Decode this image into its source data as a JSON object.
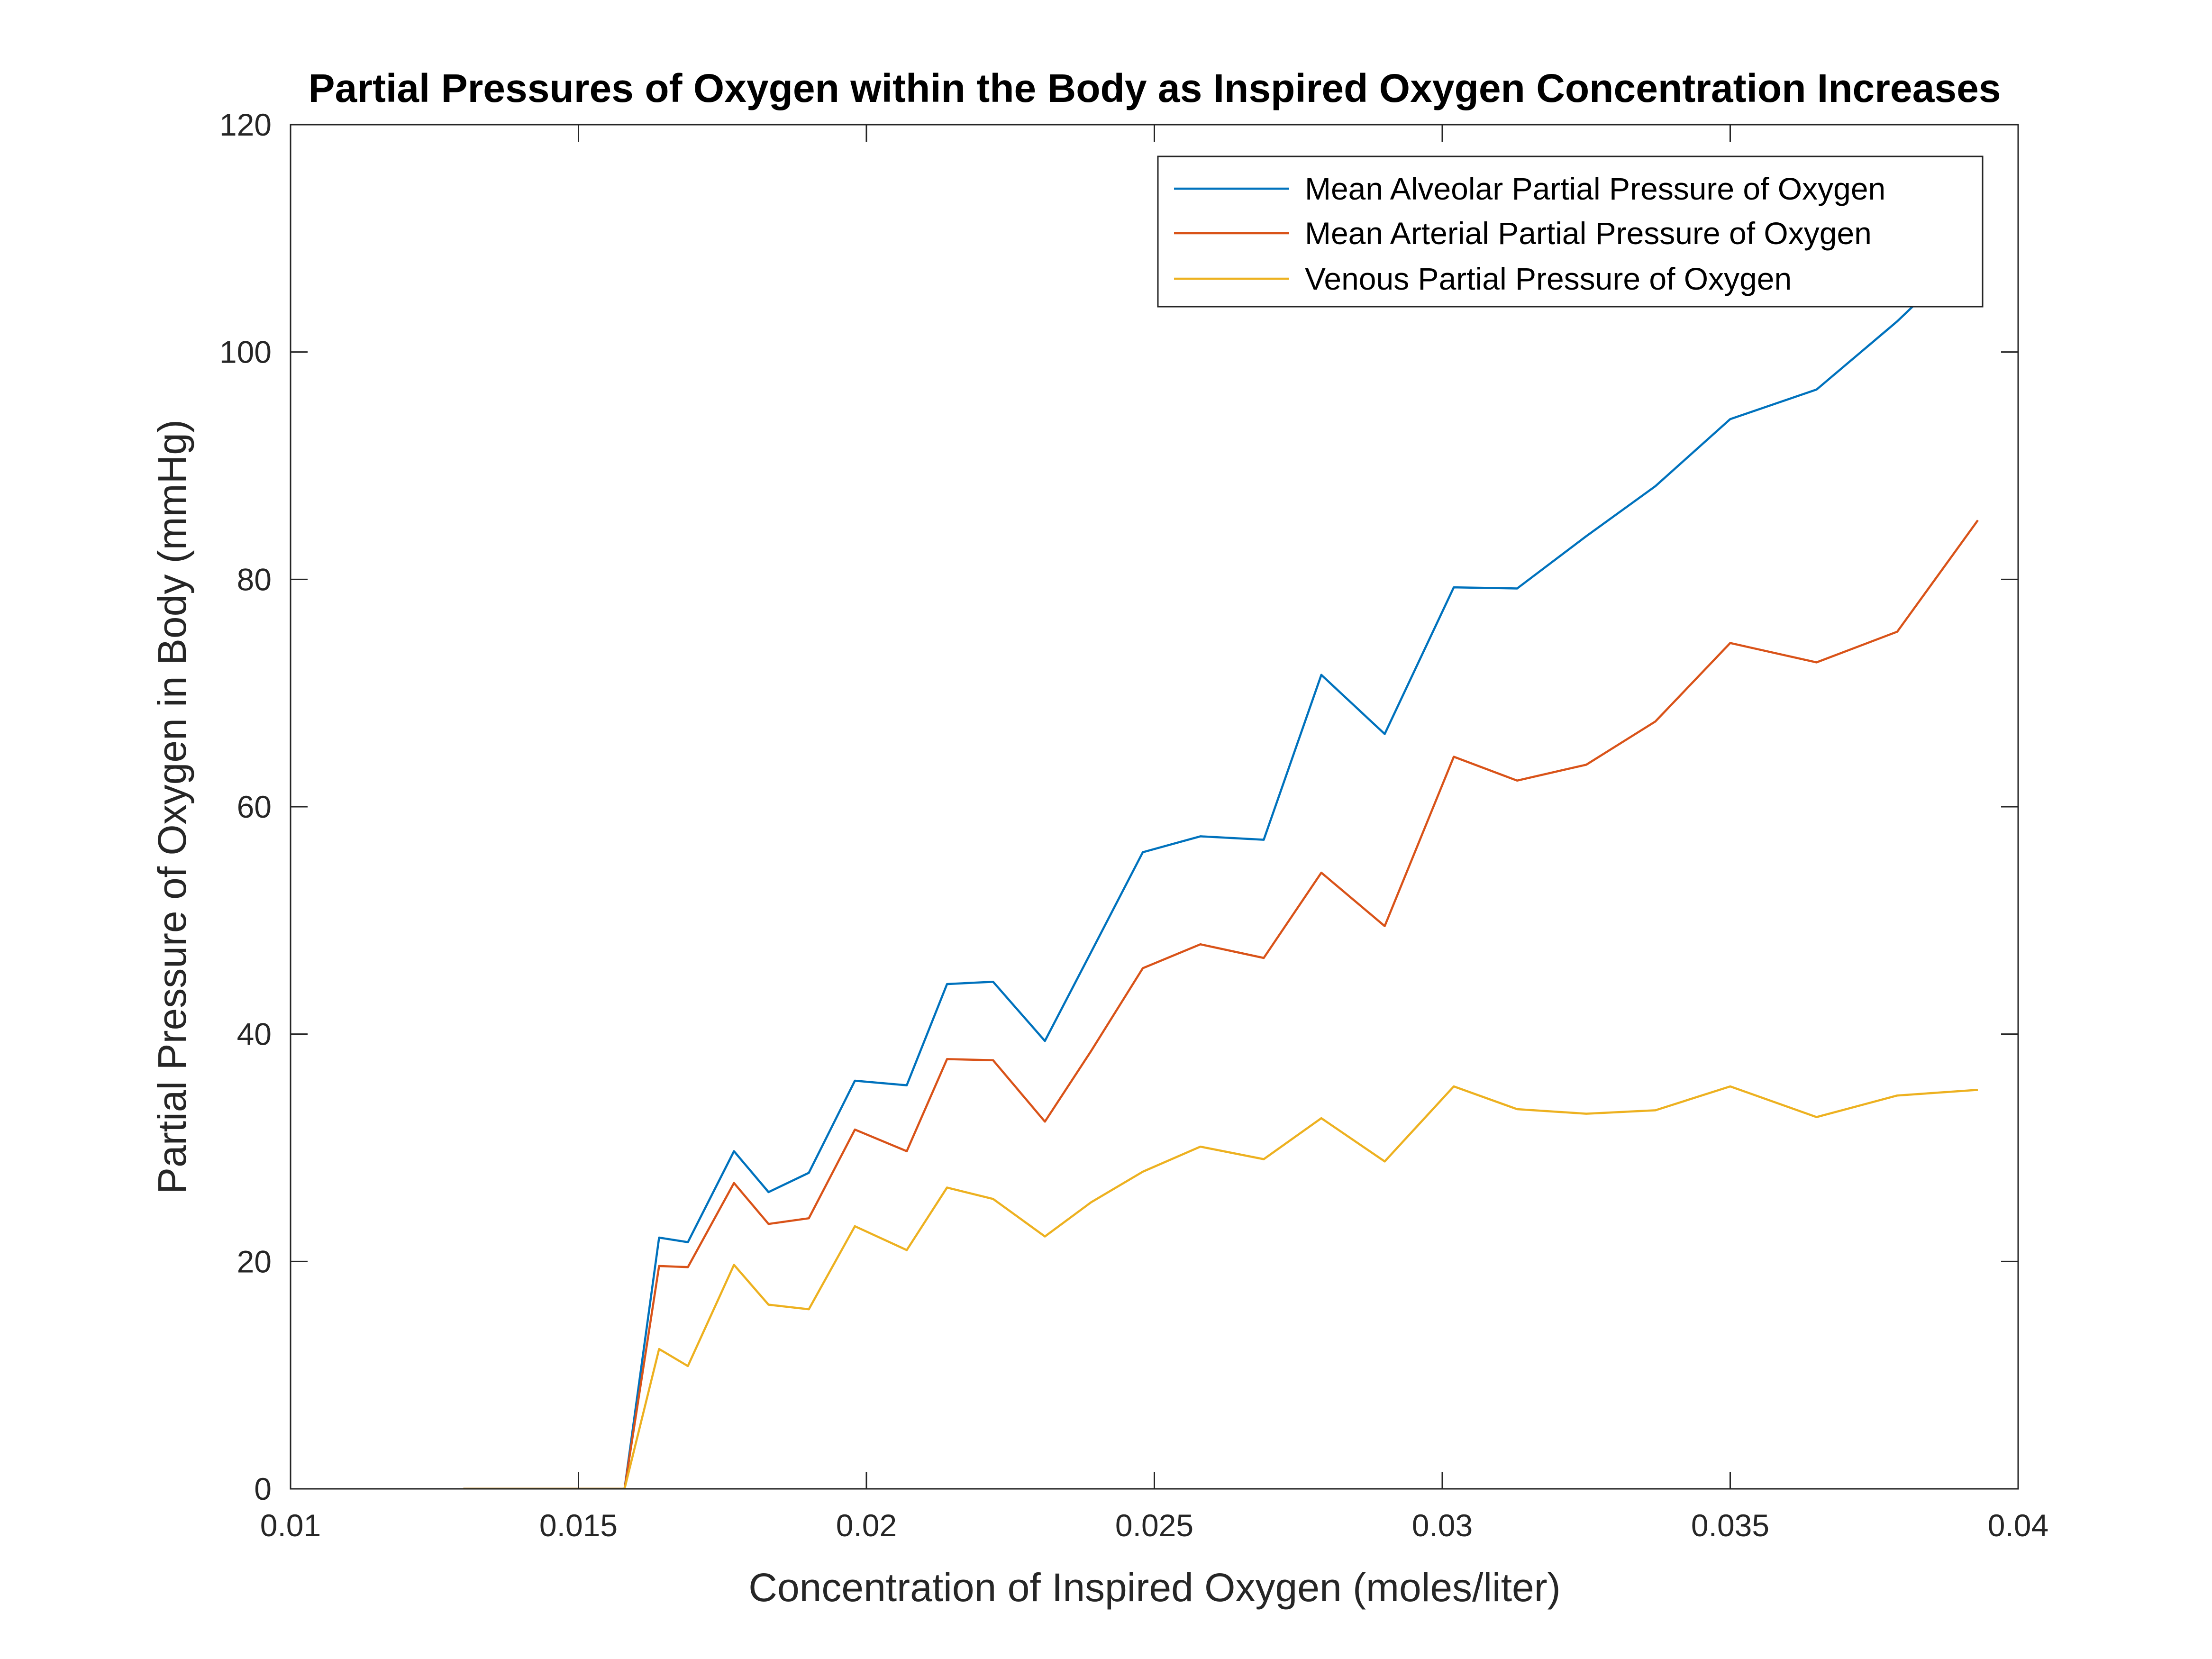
{
  "chart_data": {
    "type": "line",
    "title": "Partial Pressures of Oxygen within the Body as Inspired Oxygen Concentration Increases",
    "xlabel": "Concentration of Inspired Oxygen (moles/liter)",
    "ylabel": "Partial Pressure of Oxygen in  Body (mmHg)",
    "xlim": [
      0.01,
      0.04
    ],
    "ylim": [
      0,
      120
    ],
    "xticks": [
      "0.01",
      "0.015",
      "0.02",
      "0.025",
      "0.03",
      "0.035",
      "0.04"
    ],
    "yticks": [
      "0",
      "20",
      "40",
      "60",
      "80",
      "100",
      "120"
    ],
    "grid": false,
    "legend_position": "top-right",
    "x": [
      0.013,
      0.0158,
      0.0164,
      0.0169,
      0.0177,
      0.0183,
      0.019,
      0.0198,
      0.0207,
      0.0214,
      0.0222,
      0.0231,
      0.0239,
      0.0248,
      0.0258,
      0.0269,
      0.0279,
      0.029,
      0.0302,
      0.0313,
      0.0325,
      0.0337,
      0.035,
      0.0365,
      0.0379,
      0.0393
    ],
    "series": [
      {
        "name": "Mean Alveolar Partial Pressure of Oxygen",
        "color": "#0072BD",
        "values": [
          0,
          0,
          22.1,
          21.7,
          29.7,
          26.1,
          27.8,
          35.9,
          35.5,
          44.4,
          44.6,
          39.4,
          47.2,
          56.0,
          57.4,
          57.1,
          71.6,
          66.4,
          79.3,
          79.2,
          83.8,
          88.2,
          94.1,
          96.7,
          102.7,
          109.5
        ]
      },
      {
        "name": "Mean Arterial Partial Pressure of Oxygen",
        "color": "#D95319",
        "values": [
          0,
          0,
          19.6,
          19.5,
          26.9,
          23.3,
          23.8,
          31.6,
          29.7,
          37.8,
          37.7,
          32.3,
          38.5,
          45.8,
          47.9,
          46.7,
          54.2,
          49.5,
          64.4,
          62.3,
          63.7,
          67.5,
          74.4,
          72.7,
          75.4,
          85.2
        ]
      },
      {
        "name": "Venous Partial Pressure of Oxygen",
        "color": "#EDB120",
        "values": [
          0,
          0,
          12.3,
          10.8,
          19.7,
          16.2,
          15.8,
          23.1,
          21.0,
          26.5,
          25.5,
          22.2,
          25.2,
          27.9,
          30.1,
          29.0,
          32.6,
          28.8,
          35.4,
          33.4,
          33.0,
          33.3,
          35.4,
          32.7,
          34.6,
          35.1
        ]
      }
    ]
  }
}
